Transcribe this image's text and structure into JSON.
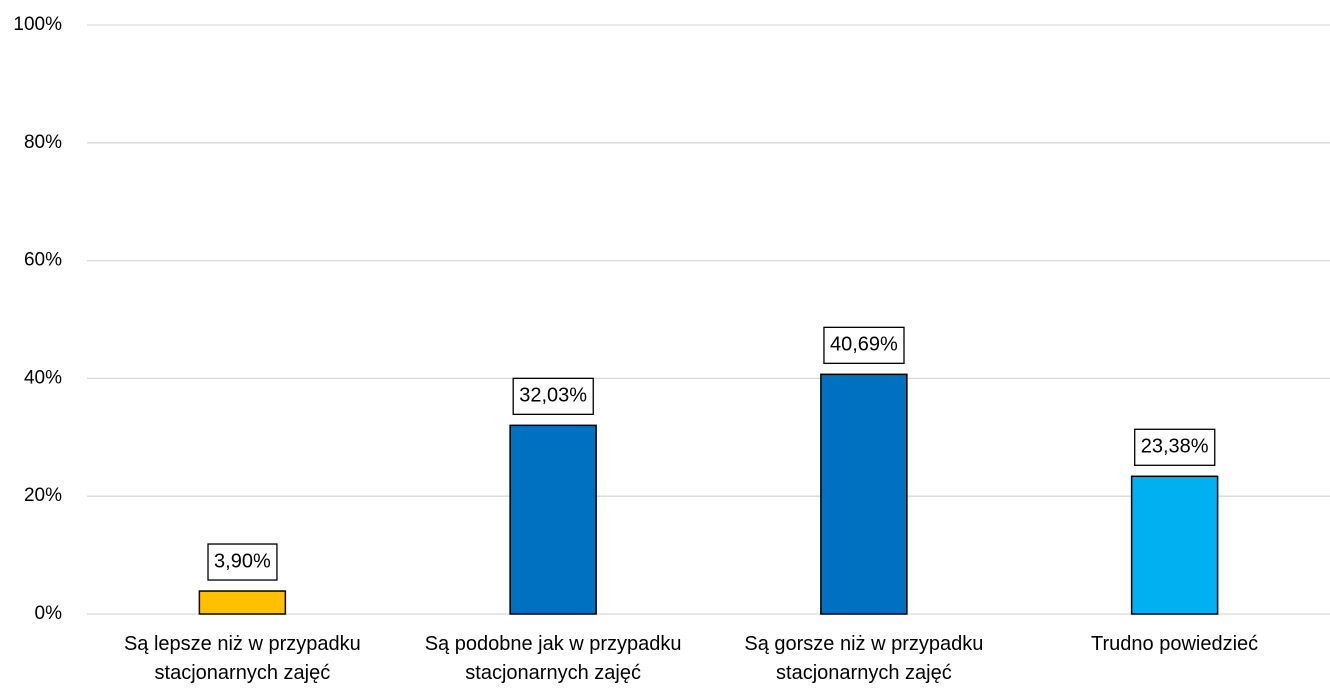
{
  "chart_data": {
    "type": "bar",
    "categories": [
      "Są lepsze niż w przypadku\nstacjonarnych zajęć",
      "Są podobne jak w przypadku\nstacjonarnych zajęć",
      "Są gorsze niż w przypadku\nstacjonarnych zajęć",
      "Trudno powiedzieć"
    ],
    "values": [
      3.9,
      32.03,
      40.69,
      23.38
    ],
    "value_labels": [
      "3,90%",
      "32,03%",
      "40,69%",
      "23,38%"
    ],
    "colors": [
      "#ffc000",
      "#0070c0",
      "#0070c0",
      "#00b0f0"
    ],
    "ylim": [
      0,
      100
    ],
    "yticks": [
      {
        "value": 0,
        "label": "0%"
      },
      {
        "value": 20,
        "label": "20%"
      },
      {
        "value": 40,
        "label": "40%"
      },
      {
        "value": 60,
        "label": "60%"
      },
      {
        "value": 80,
        "label": "80%"
      },
      {
        "value": 100,
        "label": "100%"
      }
    ],
    "grid": true
  }
}
